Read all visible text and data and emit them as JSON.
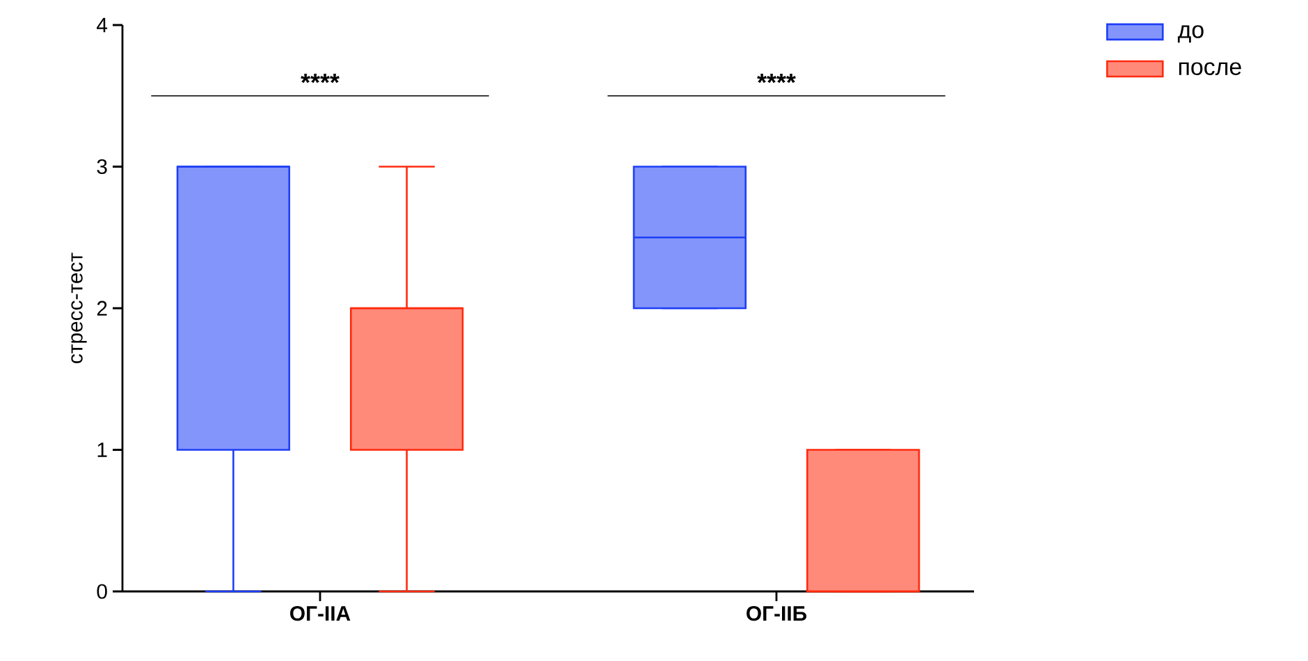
{
  "chart_data": {
    "type": "box",
    "ylabel": "стресс-тест",
    "categories": [
      "ОГ-IIА",
      "ОГ-IIБ"
    ],
    "ylim": [
      0,
      4
    ],
    "yticks": [
      0,
      1,
      2,
      3,
      4
    ],
    "legend": "top right",
    "series": [
      {
        "name": "до",
        "color": "#1e3ef6",
        "boxes": [
          {
            "low": 0,
            "q1": 1,
            "median": 3,
            "q3": 3,
            "high": 3
          },
          {
            "low": 2,
            "q1": 2,
            "median": 2.5,
            "q3": 3,
            "high": 3
          }
        ]
      },
      {
        "name": "после",
        "color": "#ff2a0e",
        "boxes": [
          {
            "low": 0,
            "q1": 1,
            "median": 2,
            "q3": 2,
            "high": 3
          },
          {
            "low": 0,
            "q1": 0,
            "median": 0,
            "q3": 1,
            "high": 1
          }
        ]
      }
    ],
    "annotations": [
      "****",
      "****"
    ]
  }
}
